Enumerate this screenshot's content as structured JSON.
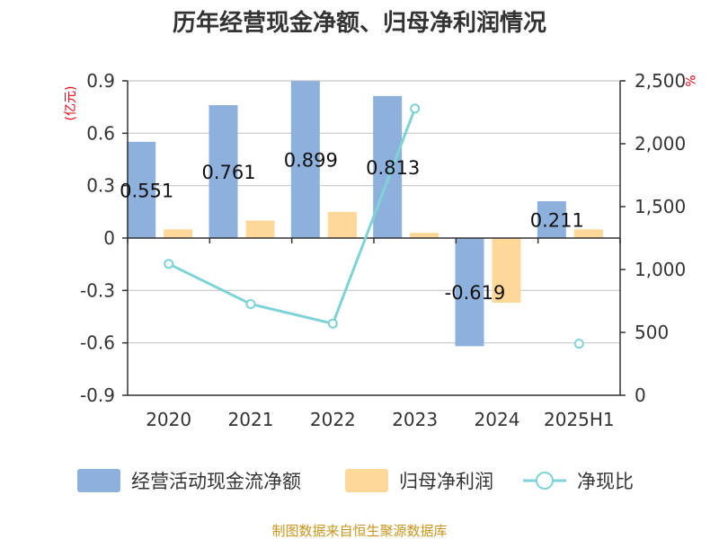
{
  "chart_data": {
    "type": "bar",
    "title": "历年经营现金净额、归母净利润情况",
    "categories": [
      "2020",
      "2021",
      "2022",
      "2023",
      "2024",
      "2025H1"
    ],
    "y_left_unit": "(亿元)",
    "y_right_unit": "%",
    "y_left_ticks": [
      "0.9",
      "0.6",
      "0.3",
      "0",
      "-0.3",
      "-0.6",
      "-0.9"
    ],
    "y_right_ticks": [
      "2,500",
      "2,000",
      "1,500",
      "1,000",
      "500",
      "0"
    ],
    "ylim_left": [
      -0.9,
      0.9
    ],
    "ylim_right": [
      0,
      2500
    ],
    "grid": true,
    "legend_position": "bottom",
    "series": [
      {
        "name": "经营活动现金流净额",
        "type": "bar",
        "axis": "left",
        "color": "#8eb0dc",
        "values": [
          0.551,
          0.761,
          0.899,
          0.813,
          -0.619,
          0.211
        ],
        "labels": [
          "0.551",
          "0.761",
          "0.899",
          "0.813",
          "-0.619",
          "0.211"
        ]
      },
      {
        "name": "归母净利润",
        "type": "bar",
        "axis": "left",
        "color": "#fdd898",
        "values": [
          0.05,
          0.1,
          0.15,
          0.03,
          -0.37,
          0.05
        ]
      },
      {
        "name": "净现比",
        "type": "line",
        "axis": "right",
        "color": "#7fd3d6",
        "values": [
          1045,
          725,
          570,
          2280,
          null,
          410
        ]
      }
    ],
    "source": "制图数据来自恒生聚源数据库"
  }
}
